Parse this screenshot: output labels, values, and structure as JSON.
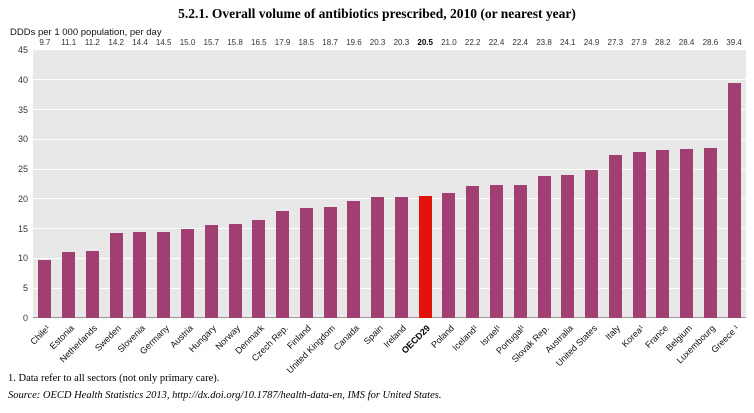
{
  "chart_data": {
    "type": "bar",
    "title": "5.2.1.  Overall volume of antibiotics prescribed, 2010 (or nearest year)",
    "ylabel": "DDDs per 1 000 population, per day",
    "xlabel": "",
    "ylim": [
      0,
      45
    ],
    "ytick_step": 5,
    "legend": "none",
    "grid": "horizontal white gridlines on gray plot background",
    "categories": [
      "Chile¹",
      "Estonia",
      "Netherlands",
      "Sweden",
      "Slovenia",
      "Germany",
      "Austria",
      "Hungary",
      "Norway",
      "Denmark",
      "Czech Rep.",
      "Finland",
      "United Kingdom",
      "Canada",
      "Spain",
      "Ireland",
      "OECD29",
      "Poland",
      "Iceland¹",
      "Israel¹",
      "Portugal¹",
      "Slovak Rep.",
      "Australia",
      "United States",
      "Italy",
      "Korea¹",
      "France",
      "Belgium",
      "Luxembourg",
      "Greece ¹"
    ],
    "values": [
      9.7,
      11.1,
      11.2,
      14.2,
      14.4,
      14.5,
      15.0,
      15.7,
      15.8,
      16.5,
      17.9,
      18.5,
      18.7,
      19.6,
      20.3,
      20.3,
      20.5,
      21.0,
      22.2,
      22.4,
      22.4,
      23.8,
      24.1,
      24.9,
      27.3,
      27.9,
      28.2,
      28.4,
      28.6,
      39.4
    ],
    "value_labels": [
      "9.7",
      "11.1",
      "11.2",
      "14.2",
      "14.4",
      "14.5",
      "15.0",
      "15.7",
      "15.8",
      "16.5",
      "17.9",
      "18.5",
      "18.7",
      "19.6",
      "20.3",
      "20.3",
      "20.5",
      "21.0",
      "22.2",
      "22.4",
      "22.4",
      "23.8",
      "24.1",
      "24.9",
      "27.3",
      "27.9",
      "28.2",
      "28.4",
      "28.6",
      "39.4"
    ],
    "highlight_index": 16,
    "highlight_category": "OECD29",
    "colors": {
      "bar": "#A23F72",
      "highlight": "#E3120B",
      "plot_bg": "#E8E8E8",
      "gridline": "#FFFFFF"
    }
  },
  "footnotes": {
    "note1": "1.  Data refer to all sectors (not only primary care).",
    "source": "Source:  OECD Health Statistics 2013, http://dx.doi.org/10.1787/health-data-en, IMS for United States."
  }
}
